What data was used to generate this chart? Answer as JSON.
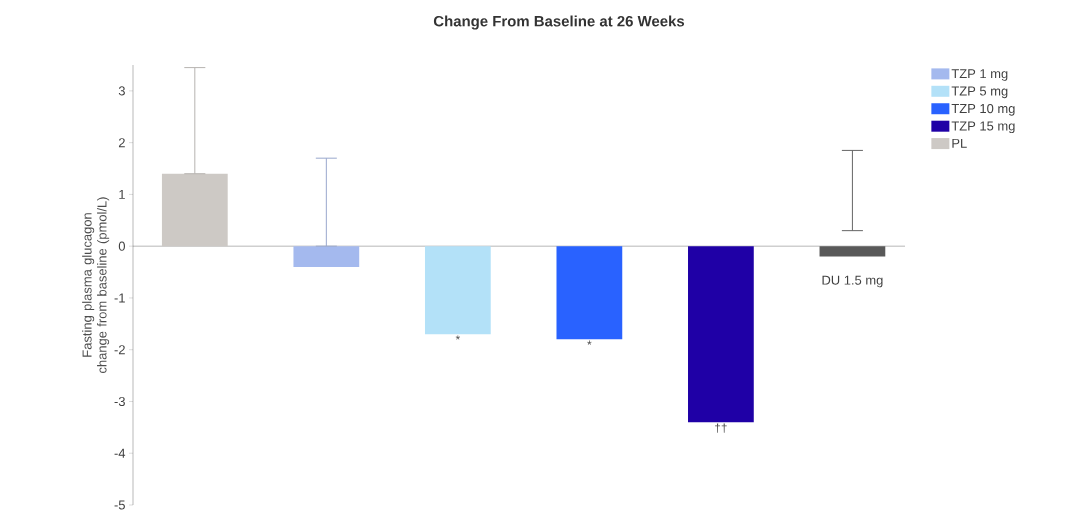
{
  "chart_data": {
    "type": "bar",
    "title": "Change From Baseline at 26 Weeks",
    "ylabel": "Fasting plasma glucagon change from baseline (pmol/L)",
    "categories": [
      null,
      null,
      null,
      null,
      null,
      "DU 1.5 mg"
    ],
    "series": [
      {
        "name": "TZP 1 mg",
        "color": "#a4b9ee",
        "values": [
          null,
          -0.4,
          null,
          null,
          null,
          null
        ],
        "errors": [
          null,
          [
            0,
            1.7
          ],
          null,
          null,
          null,
          null
        ]
      },
      {
        "name": "TZP 5 mg",
        "color": "#b3e1f8",
        "values": [
          null,
          null,
          -1.7,
          null,
          null,
          null
        ]
      },
      {
        "name": "TZP 10 mg",
        "color": "#2962ff",
        "values": [
          null,
          null,
          null,
          -1.8,
          null,
          null
        ]
      },
      {
        "name": "TZP 15 mg",
        "color": "#1f00a6",
        "values": [
          null,
          null,
          null,
          null,
          -3.4,
          null
        ]
      },
      {
        "name": "PL",
        "color": "#cdc9c5",
        "values": [
          1.4,
          null,
          null,
          null,
          null,
          null
        ],
        "errors": [
          [
            1.4,
            3.45
          ],
          null,
          null,
          null,
          null,
          null
        ]
      },
      {
        "color": "#595959",
        "values": [
          null,
          null,
          null,
          null,
          null,
          -0.2
        ],
        "errors": [
          null,
          null,
          null,
          null,
          null,
          [
            0.3,
            1.85
          ]
        ]
      }
    ],
    "annotations": [
      {
        "text": "*",
        "y": -1.7
      },
      {
        "text": "*",
        "y": -1.8
      },
      {
        "text": "††",
        "y": -3.4
      }
    ],
    "ylim": [
      -5,
      3.5
    ],
    "yticks": [
      -5,
      -4,
      -3,
      -2,
      -1,
      0,
      1,
      2,
      3
    ],
    "legend": "right"
  }
}
